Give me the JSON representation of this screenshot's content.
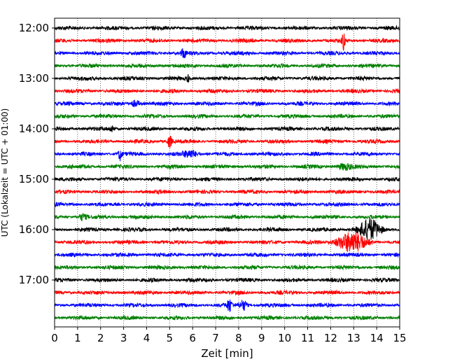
{
  "chart_data": {
    "type": "line",
    "title": "",
    "xlabel": "Zeit  [min]",
    "ylabel": "UTC (Lokalzeit = UTC + 01:00)",
    "xlim": [
      0,
      15
    ],
    "x_ticks": [
      "0",
      "1",
      "2",
      "3",
      "4",
      "5",
      "6",
      "7",
      "8",
      "9",
      "10",
      "11",
      "12",
      "13",
      "14",
      "15"
    ],
    "y_tick_labels": [
      "12:00",
      "13:00",
      "14:00",
      "15:00",
      "16:00",
      "17:00"
    ],
    "grid": "vertical dotted",
    "trace_minutes_per_row": 15,
    "trace_colors": [
      "#000000",
      "#ff0000",
      "#0000ff",
      "#008000"
    ],
    "rows": [
      {
        "time": "12:00",
        "color": "#000000",
        "events": []
      },
      {
        "time": "12:15",
        "color": "#ff0000",
        "events": [
          {
            "x": 12.55,
            "amp": 1.0,
            "width": 0.06
          }
        ]
      },
      {
        "time": "12:30",
        "color": "#0000ff",
        "events": [
          {
            "x": 5.6,
            "amp": 0.5,
            "width": 0.1
          }
        ]
      },
      {
        "time": "12:45",
        "color": "#008000",
        "events": []
      },
      {
        "time": "13:00",
        "color": "#000000",
        "events": [
          {
            "x": 5.8,
            "amp": 0.4,
            "width": 0.05
          }
        ]
      },
      {
        "time": "13:15",
        "color": "#ff0000",
        "events": []
      },
      {
        "time": "13:30",
        "color": "#0000ff",
        "events": [
          {
            "x": 3.5,
            "amp": 0.3,
            "width": 0.2
          }
        ]
      },
      {
        "time": "13:45",
        "color": "#008000",
        "events": []
      },
      {
        "time": "14:00",
        "color": "#000000",
        "events": [
          {
            "x": 2.5,
            "amp": 0.3,
            "width": 0.1
          }
        ]
      },
      {
        "time": "14:15",
        "color": "#ff0000",
        "events": [
          {
            "x": 5.0,
            "amp": 0.6,
            "width": 0.1
          }
        ]
      },
      {
        "time": "14:30",
        "color": "#0000ff",
        "events": [
          {
            "x": 2.85,
            "amp": 0.6,
            "width": 0.08
          },
          {
            "x": 5.9,
            "amp": 0.35,
            "width": 0.3
          }
        ]
      },
      {
        "time": "14:45",
        "color": "#008000",
        "events": [
          {
            "x": 12.6,
            "amp": 0.3,
            "width": 0.3
          }
        ]
      },
      {
        "time": "15:00",
        "color": "#000000",
        "events": []
      },
      {
        "time": "15:15",
        "color": "#ff0000",
        "events": []
      },
      {
        "time": "15:30",
        "color": "#0000ff",
        "events": []
      },
      {
        "time": "15:45",
        "color": "#008000",
        "events": [
          {
            "x": 1.2,
            "amp": 0.3,
            "width": 0.15
          }
        ]
      },
      {
        "time": "16:00",
        "color": "#000000",
        "events": [
          {
            "x": 13.7,
            "amp": 1.0,
            "width": 0.45
          }
        ]
      },
      {
        "time": "16:15",
        "color": "#ff0000",
        "events": [
          {
            "x": 12.9,
            "amp": 1.0,
            "width": 0.6
          }
        ]
      },
      {
        "time": "16:30",
        "color": "#0000ff",
        "events": []
      },
      {
        "time": "16:45",
        "color": "#008000",
        "events": []
      },
      {
        "time": "17:00",
        "color": "#000000",
        "events": []
      },
      {
        "time": "17:15",
        "color": "#ff0000",
        "events": []
      },
      {
        "time": "17:30",
        "color": "#0000ff",
        "events": [
          {
            "x": 7.6,
            "amp": 0.6,
            "width": 0.1
          },
          {
            "x": 8.2,
            "amp": 0.5,
            "width": 0.15
          }
        ]
      },
      {
        "time": "17:45",
        "color": "#008000",
        "events": []
      }
    ]
  }
}
